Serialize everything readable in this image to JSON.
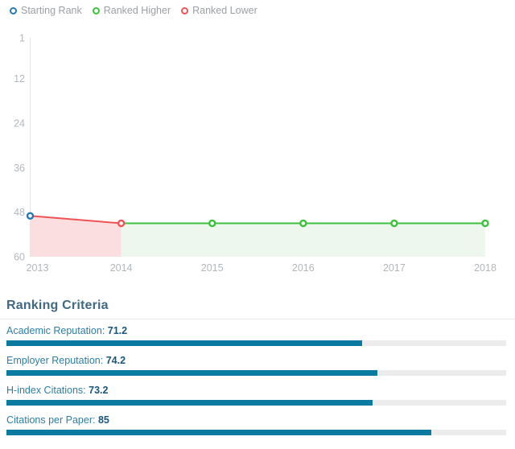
{
  "legend": {
    "items": [
      {
        "key": "starting",
        "label": "Starting Rank",
        "color": "#2279b5"
      },
      {
        "key": "higher",
        "label": "Ranked Higher",
        "color": "#3cc13c"
      },
      {
        "key": "lower",
        "label": "Ranked Lower",
        "color": "#ef5356"
      }
    ]
  },
  "chart_data": [
    {
      "type": "line",
      "title": "",
      "x": [
        2013,
        2014,
        2015,
        2016,
        2017,
        2018
      ],
      "series": [
        {
          "name": "Rank",
          "values": [
            49,
            51,
            51,
            51,
            51,
            51
          ]
        }
      ],
      "point_status": [
        "starting",
        "lower",
        "higher",
        "higher",
        "higher",
        "higher"
      ],
      "y_ticks": [
        1,
        12,
        24,
        36,
        48,
        60
      ],
      "ylim": [
        1,
        60
      ],
      "y_inverted": true,
      "grid": false,
      "legend_position": "top-left",
      "colors": {
        "starting": "#2279b5",
        "higher": "#3cc13c",
        "lower": "#ef5356",
        "lower_fill": "#fbdfe0",
        "higher_fill": "#eef7ed",
        "axis_line": "#e4e4e4",
        "tick_text": "#b2b7bc"
      }
    },
    {
      "type": "bar",
      "title": "Ranking Criteria",
      "orientation": "horizontal",
      "xlim": [
        0,
        100
      ],
      "categories": [
        "Academic Reputation",
        "Employer Reputation",
        "H-index Citations",
        "Citations per Paper"
      ],
      "values": [
        71.2,
        74.2,
        73.2,
        85
      ],
      "bar_color": "#0b7aa0",
      "track_color": "#ececec",
      "rows": [
        {
          "label": "Academic Reputation:",
          "value": "71.2",
          "percent": 71.2
        },
        {
          "label": "Employer Reputation:",
          "value": "74.2",
          "percent": 74.2
        },
        {
          "label": "H-index Citations:",
          "value": "73.2",
          "percent": 73.2
        },
        {
          "label": "Citations per Paper:",
          "value": "85",
          "percent": 85
        }
      ]
    }
  ]
}
